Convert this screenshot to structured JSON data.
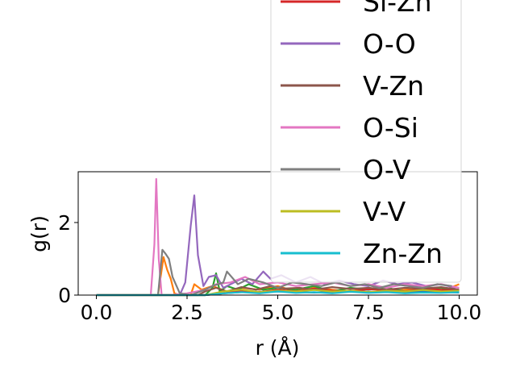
{
  "chart_data": {
    "type": "line",
    "xlabel": "r (Å)",
    "ylabel": "g(r)",
    "xlim": [
      -0.5,
      10.5
    ],
    "ylim": [
      0,
      3.4
    ],
    "xticks": [
      0.0,
      2.5,
      5.0,
      7.5,
      10.0
    ],
    "xtick_labels": [
      "0.0",
      "2.5",
      "5.0",
      "7.5",
      "10.0"
    ],
    "yticks": [
      0,
      2
    ],
    "ytick_labels": [
      "0",
      "2"
    ],
    "legend_position": "upper-right",
    "series": [
      {
        "name": "Si-Zn",
        "color": "#d62728",
        "x": [
          0,
          1.0,
          2.0,
          3.0,
          3.5,
          4.0,
          4.5,
          5.0,
          5.5,
          6.0,
          6.5,
          7.0,
          7.5,
          8.0,
          8.5,
          9.0,
          9.5,
          10.0
        ],
        "y": [
          0,
          0,
          0,
          0,
          0.05,
          0.12,
          0.08,
          0.15,
          0.1,
          0.18,
          0.12,
          0.1,
          0.16,
          0.14,
          0.1,
          0.18,
          0.15,
          0.12
        ]
      },
      {
        "name": "O-O",
        "color": "#9467bd",
        "x": [
          0,
          2.3,
          2.45,
          2.6,
          2.7,
          2.8,
          2.95,
          3.1,
          3.3,
          3.5,
          3.8,
          4.0,
          4.3,
          4.6,
          4.8,
          5.1,
          5.5,
          5.9,
          6.3,
          6.7,
          7.1,
          7.5,
          7.9,
          8.3,
          8.7,
          9.1,
          9.5,
          9.9
        ],
        "y": [
          0,
          0,
          0.35,
          1.9,
          2.75,
          1.1,
          0.25,
          0.5,
          0.55,
          0.2,
          0.35,
          0.45,
          0.3,
          0.65,
          0.45,
          0.55,
          0.35,
          0.5,
          0.3,
          0.4,
          0.3,
          0.25,
          0.4,
          0.3,
          0.35,
          0.25,
          0.3,
          0.2
        ]
      },
      {
        "name": "V-Zn",
        "color": "#8c564b",
        "x": [
          0,
          2.8,
          3.0,
          3.3,
          3.6,
          4.0,
          4.4,
          4.8,
          5.2,
          5.6,
          6.0,
          6.5,
          7.0,
          7.5,
          8.0,
          8.5,
          9.0,
          9.5,
          10.0
        ],
        "y": [
          0,
          0,
          0.1,
          0.2,
          0.1,
          0.22,
          0.15,
          0.25,
          0.18,
          0.2,
          0.15,
          0.22,
          0.17,
          0.2,
          0.15,
          0.2,
          0.18,
          0.22,
          0.15
        ]
      },
      {
        "name": "O-Si",
        "color": "#e377c2",
        "x": [
          0,
          1.5,
          1.6,
          1.65,
          1.72,
          1.8,
          2.0,
          2.5,
          3.0,
          3.3,
          3.7,
          4.1,
          4.5,
          5.0,
          5.5,
          6.0,
          6.5,
          7.0,
          7.5,
          8.0,
          8.5,
          9.0,
          9.5,
          10.0
        ],
        "y": [
          0,
          0,
          1.4,
          3.2,
          1.0,
          0,
          0,
          0.05,
          0.15,
          0.3,
          0.35,
          0.5,
          0.3,
          0.35,
          0.25,
          0.3,
          0.35,
          0.25,
          0.3,
          0.2,
          0.3,
          0.25,
          0.3,
          0.2
        ]
      },
      {
        "name": "O-V",
        "color": "#7f7f7f",
        "x": [
          0,
          1.7,
          1.82,
          1.9,
          2.0,
          2.1,
          2.3,
          2.6,
          3.0,
          3.2,
          3.5,
          3.6,
          3.9,
          4.2,
          4.6,
          5.0,
          5.4,
          5.8,
          6.2,
          6.6,
          7.0,
          7.4,
          7.8,
          8.2,
          8.6,
          9.0,
          9.4,
          9.8
        ],
        "y": [
          0,
          0,
          1.25,
          1.15,
          1.0,
          0.5,
          0.05,
          0,
          0.15,
          0.25,
          0.35,
          0.65,
          0.3,
          0.45,
          0.35,
          0.2,
          0.35,
          0.3,
          0.25,
          0.35,
          0.25,
          0.3,
          0.2,
          0.3,
          0.25,
          0.2,
          0.3,
          0.25
        ]
      },
      {
        "name": "V-V",
        "color": "#bcbd22",
        "x": [
          0,
          3.0,
          3.5,
          4.0,
          4.5,
          5.0,
          5.5,
          6.0,
          6.5,
          7.0,
          7.5,
          8.0,
          8.5,
          9.0,
          9.5,
          10.0
        ],
        "y": [
          0,
          0,
          0.1,
          0.15,
          0.08,
          0.12,
          0.1,
          0.14,
          0.1,
          0.12,
          0.08,
          0.12,
          0.1,
          0.14,
          0.1,
          0.12
        ]
      },
      {
        "name": "Zn-Zn",
        "color": "#17becf",
        "x": [
          0,
          3.0,
          3.5,
          4.0,
          4.5,
          5.0,
          5.5,
          6.0,
          6.5,
          7.0,
          7.5,
          8.0,
          8.5,
          9.0,
          9.5,
          10.0
        ],
        "y": [
          0,
          0,
          0.05,
          0.08,
          0.05,
          0.1,
          0.06,
          0.08,
          0.05,
          0.09,
          0.06,
          0.08,
          0.05,
          0.07,
          0.06,
          0.08
        ]
      }
    ],
    "extra_lines": [
      {
        "color": "#1f77b4",
        "x": [
          0,
          3.0,
          3.5,
          4.0,
          5.0,
          6.0,
          7.0,
          8.0,
          9.0,
          10.0
        ],
        "y": [
          0,
          0,
          0.05,
          0.08,
          0.1,
          0.07,
          0.1,
          0.08,
          0.1,
          0.07
        ]
      },
      {
        "color": "#ff7f0e",
        "x": [
          0,
          1.7,
          1.85,
          1.95,
          2.05,
          2.15,
          2.3,
          2.6,
          2.7,
          2.9,
          3.2,
          3.6,
          4.0,
          4.5,
          5.0,
          5.5,
          6.0,
          6.5,
          7.0,
          7.5,
          8.0,
          8.5,
          9.0,
          9.5,
          10.0
        ],
        "y": [
          0,
          0,
          1.05,
          0.7,
          0.45,
          0.05,
          0,
          0,
          0.3,
          0.15,
          0.25,
          0.1,
          0.2,
          0.15,
          0.25,
          0.1,
          0.2,
          0.15,
          0.1,
          0.2,
          0.1,
          0.15,
          0.2,
          0.1,
          0.3
        ]
      },
      {
        "color": "#2ca02c",
        "x": [
          0,
          3.0,
          3.2,
          3.3,
          3.4,
          3.6,
          3.9,
          4.2,
          4.6,
          5.0,
          5.5,
          6.0,
          6.5,
          7.0,
          7.5,
          8.0,
          8.5,
          9.0,
          9.5,
          10.0
        ],
        "y": [
          0,
          0,
          0.2,
          0.6,
          0.1,
          0.25,
          0.15,
          0.3,
          0.15,
          0.2,
          0.15,
          0.25,
          0.1,
          0.2,
          0.15,
          0.2,
          0.1,
          0.15,
          0.2,
          0.1
        ]
      }
    ]
  }
}
